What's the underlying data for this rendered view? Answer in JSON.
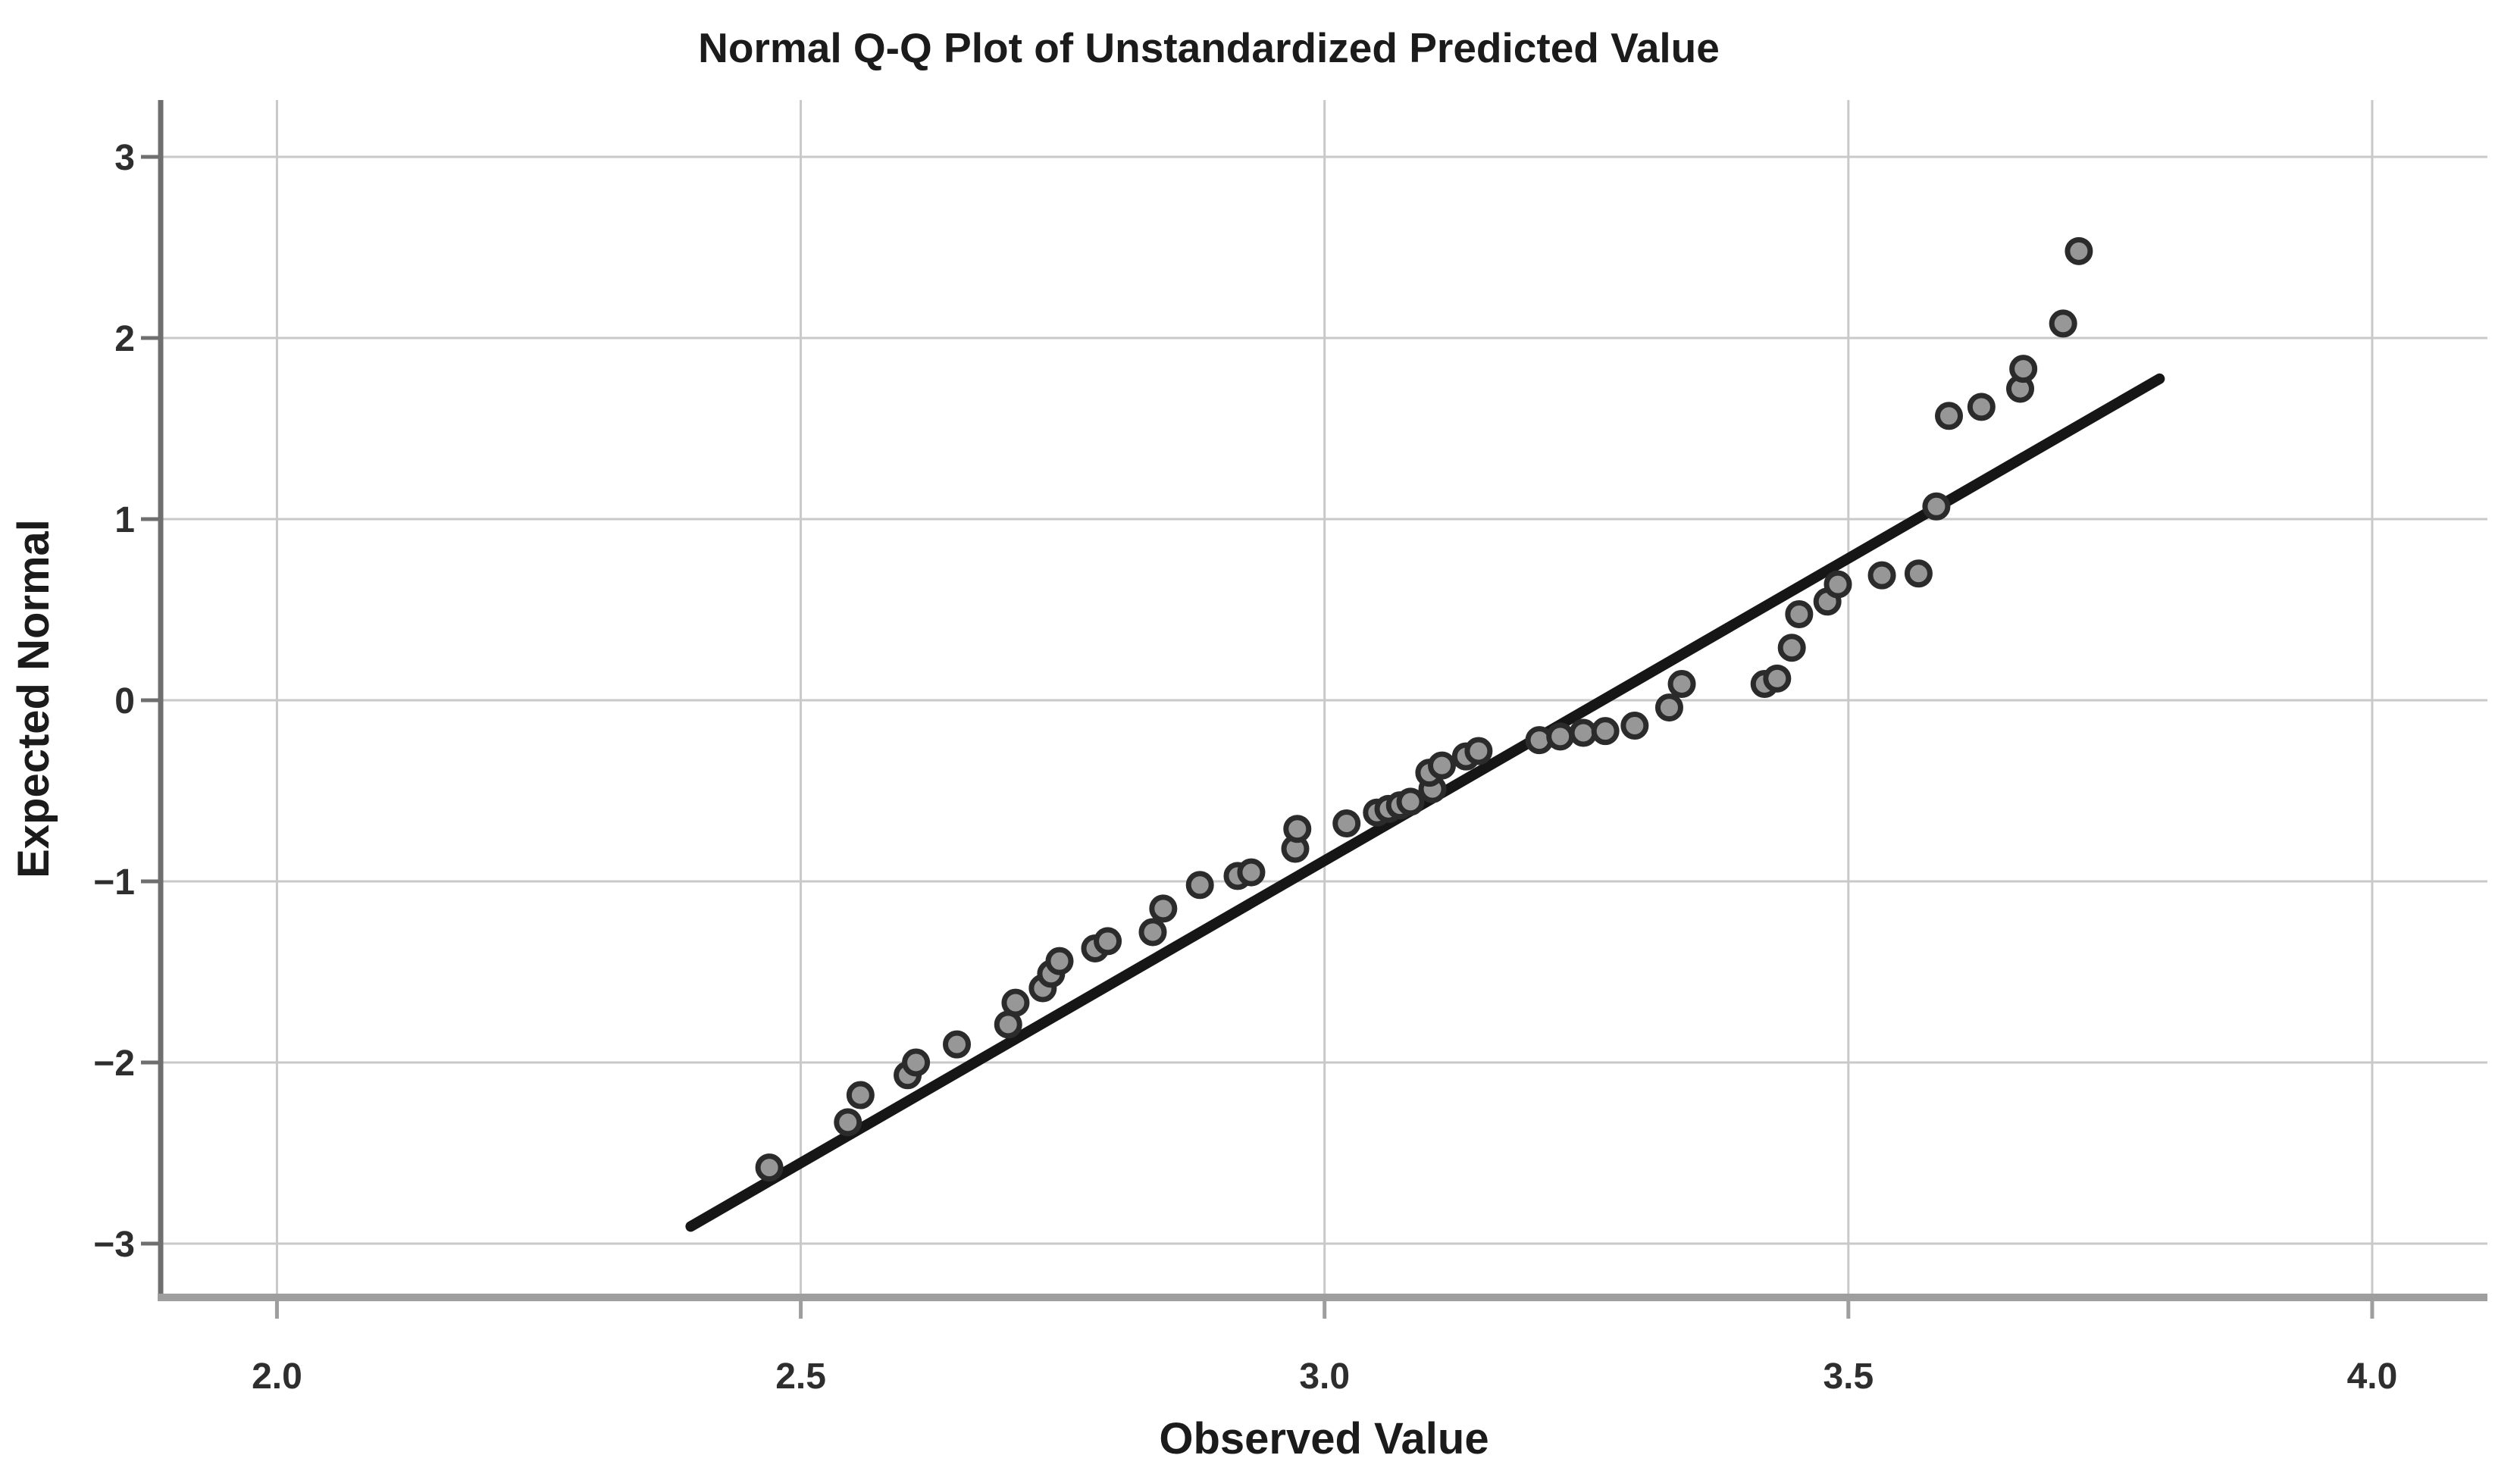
{
  "chart_data": {
    "type": "scatter",
    "title": "Normal Q-Q Plot of Unstandardized Predicted Value",
    "xlabel": "Observed Value",
    "ylabel": "Expected Normal",
    "xlim": [
      1.889,
      4.11
    ],
    "ylim": [
      -3.297,
      3.314
    ],
    "grid": true,
    "legend": "none",
    "x_ticks": {
      "values": [
        2.0,
        2.5,
        3.0,
        3.5,
        4.0
      ],
      "labels": [
        "2.0",
        "2.5",
        "3.0",
        "3.5",
        "4.0"
      ]
    },
    "y_ticks": {
      "values": [
        3,
        2,
        1,
        0,
        -1,
        -2,
        -3
      ],
      "labels": [
        "3",
        "2",
        "1",
        "0",
        "−1",
        "−2",
        "−3"
      ]
    },
    "reference_line": {
      "x1": 2.395,
      "y1": -2.905,
      "x2": 3.797,
      "y2": 1.775
    },
    "points": [
      [
        2.47,
        -2.58
      ],
      [
        2.545,
        -2.33
      ],
      [
        2.557,
        -2.18
      ],
      [
        2.602,
        -2.07
      ],
      [
        2.61,
        -2.0
      ],
      [
        2.649,
        -1.9
      ],
      [
        2.698,
        -1.79
      ],
      [
        2.705,
        -1.67
      ],
      [
        2.731,
        -1.59
      ],
      [
        2.739,
        -1.51
      ],
      [
        2.747,
        -1.44
      ],
      [
        2.781,
        -1.37
      ],
      [
        2.793,
        -1.33
      ],
      [
        2.836,
        -1.28
      ],
      [
        2.846,
        -1.15
      ],
      [
        2.881,
        -1.02
      ],
      [
        2.917,
        -0.97
      ],
      [
        2.93,
        -0.95
      ],
      [
        2.972,
        -0.82
      ],
      [
        2.974,
        -0.71
      ],
      [
        3.021,
        -0.68
      ],
      [
        3.05,
        -0.62
      ],
      [
        3.061,
        -0.6
      ],
      [
        3.072,
        -0.58
      ],
      [
        3.082,
        -0.56
      ],
      [
        3.103,
        -0.49
      ],
      [
        3.1,
        -0.4
      ],
      [
        3.112,
        -0.36
      ],
      [
        3.135,
        -0.31
      ],
      [
        3.147,
        -0.28
      ],
      [
        3.205,
        -0.22
      ],
      [
        3.225,
        -0.2
      ],
      [
        3.247,
        -0.18
      ],
      [
        3.268,
        -0.17
      ],
      [
        3.296,
        -0.14
      ],
      [
        3.329,
        -0.04
      ],
      [
        3.341,
        0.09
      ],
      [
        3.42,
        0.09
      ],
      [
        3.432,
        0.12
      ],
      [
        3.446,
        0.29
      ],
      [
        3.453,
        0.475
      ],
      [
        3.48,
        0.545
      ],
      [
        3.49,
        0.64
      ],
      [
        3.532,
        0.69
      ],
      [
        3.567,
        0.7
      ],
      [
        3.584,
        1.07
      ],
      [
        3.596,
        1.57
      ],
      [
        3.627,
        1.62
      ],
      [
        3.664,
        1.72
      ],
      [
        3.667,
        1.83
      ],
      [
        3.705,
        2.08
      ],
      [
        3.72,
        2.48
      ]
    ],
    "colors": {
      "background": "#ffffff",
      "grid": "#c9c9c9",
      "axis_x": "#9e9e9e",
      "axis_y": "#6f6f6f",
      "tick_text": "#2e2e2e",
      "text": "#1b1b1b",
      "marker_stroke": "#2b2b2b",
      "marker_fill": "#979797",
      "line": "#161616"
    }
  }
}
